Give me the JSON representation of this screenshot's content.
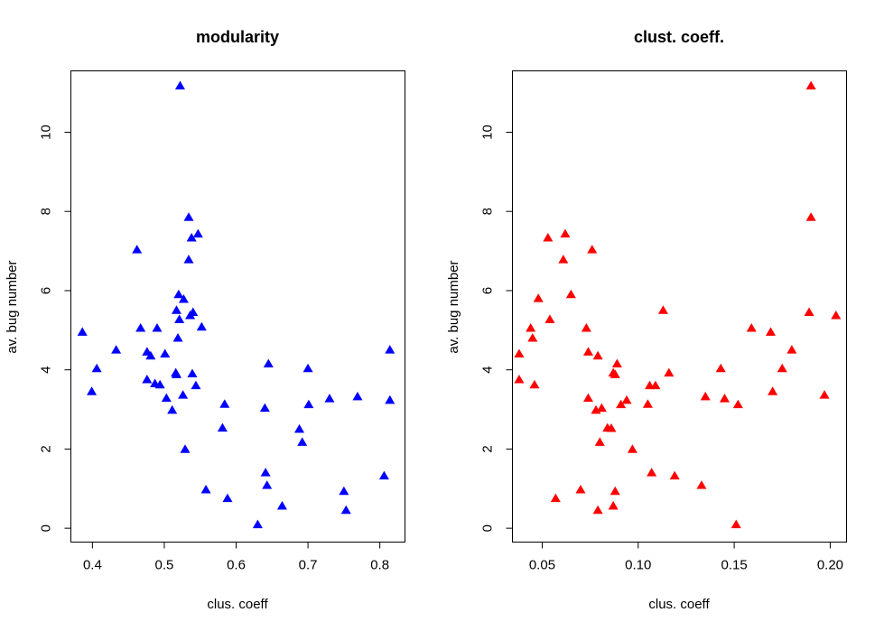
{
  "chart_data": [
    {
      "type": "scatter",
      "title": "modularity",
      "xlabel": "clus. coeff",
      "ylabel": "av. bug number",
      "xlim": [
        0.37,
        0.835
      ],
      "ylim": [
        -0.35,
        11.55
      ],
      "x_ticks": [
        0.4,
        0.5,
        0.6,
        0.7,
        0.8
      ],
      "x_tick_labels": [
        "0.4",
        "0.5",
        "0.6",
        "0.7",
        "0.8"
      ],
      "y_ticks": [
        0,
        2,
        4,
        6,
        8,
        10
      ],
      "y_tick_labels": [
        "0",
        "2",
        "4",
        "6",
        "8",
        "10"
      ],
      "grid": false,
      "marker": "filled-triangle",
      "color": "#0000FF",
      "points": [
        [
          0.522,
          11.17
        ],
        [
          0.534,
          7.85
        ],
        [
          0.547,
          7.43
        ],
        [
          0.538,
          7.33
        ],
        [
          0.462,
          7.03
        ],
        [
          0.534,
          6.78
        ],
        [
          0.52,
          5.9
        ],
        [
          0.527,
          5.78
        ],
        [
          0.54,
          5.45
        ],
        [
          0.517,
          5.5
        ],
        [
          0.536,
          5.37
        ],
        [
          0.521,
          5.27
        ],
        [
          0.552,
          5.08
        ],
        [
          0.467,
          5.05
        ],
        [
          0.49,
          5.05
        ],
        [
          0.386,
          4.95
        ],
        [
          0.519,
          4.8
        ],
        [
          0.433,
          4.5
        ],
        [
          0.814,
          4.5
        ],
        [
          0.476,
          4.45
        ],
        [
          0.501,
          4.4
        ],
        [
          0.481,
          4.35
        ],
        [
          0.645,
          4.15
        ],
        [
          0.7,
          4.03
        ],
        [
          0.406,
          4.03
        ],
        [
          0.516,
          3.92
        ],
        [
          0.517,
          3.88
        ],
        [
          0.539,
          3.9
        ],
        [
          0.476,
          3.75
        ],
        [
          0.487,
          3.65
        ],
        [
          0.494,
          3.62
        ],
        [
          0.544,
          3.6
        ],
        [
          0.399,
          3.45
        ],
        [
          0.526,
          3.36
        ],
        [
          0.769,
          3.32
        ],
        [
          0.73,
          3.27
        ],
        [
          0.503,
          3.28
        ],
        [
          0.814,
          3.23
        ],
        [
          0.584,
          3.13
        ],
        [
          0.701,
          3.12
        ],
        [
          0.64,
          3.03
        ],
        [
          0.511,
          2.98
        ],
        [
          0.581,
          2.53
        ],
        [
          0.688,
          2.5
        ],
        [
          0.692,
          2.17
        ],
        [
          0.529,
          1.99
        ],
        [
          0.641,
          1.4
        ],
        [
          0.806,
          1.32
        ],
        [
          0.643,
          1.08
        ],
        [
          0.558,
          0.97
        ],
        [
          0.75,
          0.93
        ],
        [
          0.588,
          0.75
        ],
        [
          0.664,
          0.56
        ],
        [
          0.753,
          0.45
        ],
        [
          0.63,
          0.09
        ]
      ]
    },
    {
      "type": "scatter",
      "title": "clust. coeff.",
      "xlabel": "clus. coeff",
      "ylabel": "av. bug number",
      "xlim": [
        0.0345,
        0.2085
      ],
      "ylim": [
        -0.35,
        11.55
      ],
      "x_ticks": [
        0.05,
        0.1,
        0.15,
        0.2
      ],
      "x_tick_labels": [
        "0.05",
        "0.10",
        "0.15",
        "0.20"
      ],
      "y_ticks": [
        0,
        2,
        4,
        6,
        8,
        10
      ],
      "y_tick_labels": [
        "0",
        "2",
        "4",
        "6",
        "8",
        "10"
      ],
      "grid": false,
      "marker": "filled-triangle",
      "color": "#FF0000",
      "points": [
        [
          0.19,
          11.17
        ],
        [
          0.19,
          7.85
        ],
        [
          0.062,
          7.43
        ],
        [
          0.053,
          7.33
        ],
        [
          0.076,
          7.03
        ],
        [
          0.061,
          6.78
        ],
        [
          0.065,
          5.9
        ],
        [
          0.048,
          5.8
        ],
        [
          0.113,
          5.5
        ],
        [
          0.189,
          5.45
        ],
        [
          0.203,
          5.37
        ],
        [
          0.054,
          5.27
        ],
        [
          0.159,
          5.05
        ],
        [
          0.073,
          5.05
        ],
        [
          0.044,
          5.05
        ],
        [
          0.169,
          4.95
        ],
        [
          0.045,
          4.8
        ],
        [
          0.18,
          4.5
        ],
        [
          0.074,
          4.45
        ],
        [
          0.038,
          4.4
        ],
        [
          0.079,
          4.35
        ],
        [
          0.089,
          4.15
        ],
        [
          0.143,
          4.03
        ],
        [
          0.175,
          4.03
        ],
        [
          0.087,
          3.92
        ],
        [
          0.116,
          3.92
        ],
        [
          0.088,
          3.88
        ],
        [
          0.038,
          3.75
        ],
        [
          0.046,
          3.62
        ],
        [
          0.109,
          3.6
        ],
        [
          0.106,
          3.6
        ],
        [
          0.17,
          3.45
        ],
        [
          0.197,
          3.36
        ],
        [
          0.135,
          3.32
        ],
        [
          0.074,
          3.28
        ],
        [
          0.145,
          3.27
        ],
        [
          0.094,
          3.23
        ],
        [
          0.105,
          3.13
        ],
        [
          0.152,
          3.12
        ],
        [
          0.091,
          3.12
        ],
        [
          0.081,
          3.03
        ],
        [
          0.078,
          2.98
        ],
        [
          0.084,
          2.53
        ],
        [
          0.086,
          2.52
        ],
        [
          0.08,
          2.17
        ],
        [
          0.097,
          1.99
        ],
        [
          0.107,
          1.4
        ],
        [
          0.119,
          1.32
        ],
        [
          0.133,
          1.08
        ],
        [
          0.07,
          0.97
        ],
        [
          0.088,
          0.93
        ],
        [
          0.057,
          0.75
        ],
        [
          0.087,
          0.56
        ],
        [
          0.079,
          0.45
        ],
        [
          0.151,
          0.09
        ]
      ]
    }
  ]
}
